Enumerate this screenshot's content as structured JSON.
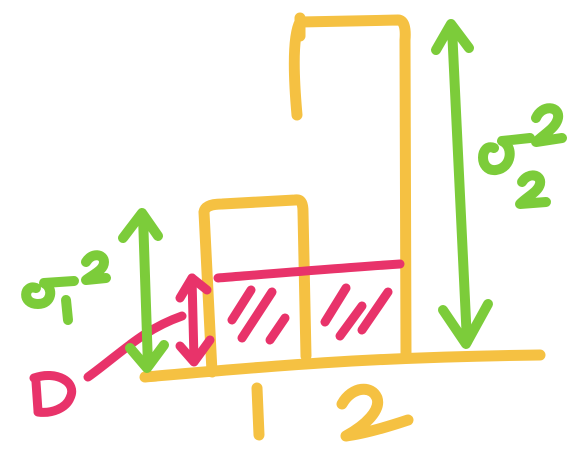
{
  "colors": {
    "bars": "#f5c142",
    "variance": "#7ccc3a",
    "d_marker": "#e8336a"
  },
  "labels": {
    "sigma1": "σ",
    "sigma1_exp": "2",
    "sigma1_sub": "1",
    "sigma2": "σ",
    "sigma2_exp": "2",
    "sigma2_sub": "2",
    "d_label": "D",
    "tick_1": "1",
    "tick_2": "2"
  },
  "icons": {
    "left_arrow": "double-headed-arrow-icon",
    "right_arrow": "double-headed-arrow-icon",
    "d_arrow": "double-headed-arrow-icon"
  }
}
